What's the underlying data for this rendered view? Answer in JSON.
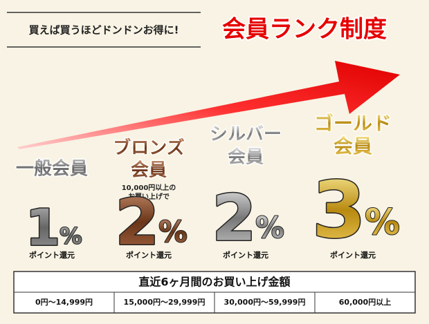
{
  "header": {
    "tagline": "買えば買うほどドンドンお得に!",
    "title": "会員ランク制度"
  },
  "ranks": [
    {
      "name": [
        "一般会員"
      ],
      "rate": 1,
      "unit": "%",
      "label": "ポイント還元"
    },
    {
      "name": [
        "ブロンズ",
        "会員"
      ],
      "note": [
        "10,000円以上の",
        "お買い上げで"
      ],
      "rate": 2,
      "unit": "%",
      "label": "ポイント還元"
    },
    {
      "name": [
        "シルバー",
        "会員"
      ],
      "rate": 2,
      "unit": "%",
      "label": "ポイント還元"
    },
    {
      "name": [
        "ゴールド",
        "会員"
      ],
      "rate": 3,
      "unit": "%",
      "label": "ポイント還元"
    }
  ],
  "table": {
    "header": "直近6ヶ月間のお買い上げ金額",
    "cells": [
      "0円～14,999円",
      "15,000円～29,999円",
      "30,000円～59,999円",
      "60,000円以上"
    ]
  }
}
